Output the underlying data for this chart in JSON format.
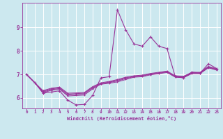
{
  "background_color": "#cce8ef",
  "grid_color": "#ffffff",
  "line_color": "#993399",
  "xlabel": "Windchill (Refroidissement éolien,°C)",
  "xlabel_color": "#993399",
  "tick_color": "#993399",
  "spine_color": "#993399",
  "xlim": [
    -0.5,
    23.5
  ],
  "ylim": [
    5.55,
    10.05
  ],
  "yticks": [
    6,
    7,
    8,
    9
  ],
  "xticks": [
    0,
    1,
    2,
    3,
    4,
    5,
    6,
    7,
    8,
    9,
    10,
    11,
    12,
    13,
    14,
    15,
    16,
    17,
    18,
    19,
    20,
    21,
    22,
    23
  ],
  "series": [
    [
      7.0,
      6.65,
      6.2,
      6.25,
      6.3,
      5.9,
      5.7,
      5.72,
      6.1,
      6.85,
      6.9,
      9.75,
      8.9,
      8.3,
      8.2,
      8.6,
      8.2,
      8.1,
      6.9,
      6.85,
      7.1,
      7.05,
      7.45,
      7.25
    ],
    [
      7.0,
      6.65,
      6.22,
      6.32,
      6.37,
      6.08,
      6.1,
      6.12,
      6.38,
      6.58,
      6.62,
      6.68,
      6.78,
      6.88,
      6.9,
      6.98,
      7.03,
      7.08,
      6.88,
      6.86,
      7.03,
      7.03,
      7.28,
      7.18
    ],
    [
      7.0,
      6.65,
      6.25,
      6.35,
      6.4,
      6.12,
      6.15,
      6.17,
      6.42,
      6.6,
      6.65,
      6.72,
      6.82,
      6.9,
      6.93,
      7.0,
      7.05,
      7.1,
      6.9,
      6.88,
      7.05,
      7.05,
      7.3,
      7.2
    ],
    [
      7.0,
      6.65,
      6.28,
      6.38,
      6.43,
      6.16,
      6.18,
      6.2,
      6.45,
      6.62,
      6.67,
      6.75,
      6.85,
      6.92,
      6.95,
      7.02,
      7.07,
      7.12,
      6.92,
      6.9,
      7.07,
      7.07,
      7.32,
      7.22
    ],
    [
      7.0,
      6.65,
      6.31,
      6.41,
      6.46,
      6.2,
      6.21,
      6.23,
      6.48,
      6.64,
      6.7,
      6.78,
      6.88,
      6.94,
      6.97,
      7.04,
      7.09,
      7.14,
      6.94,
      6.92,
      7.09,
      7.09,
      7.34,
      7.24
    ]
  ]
}
